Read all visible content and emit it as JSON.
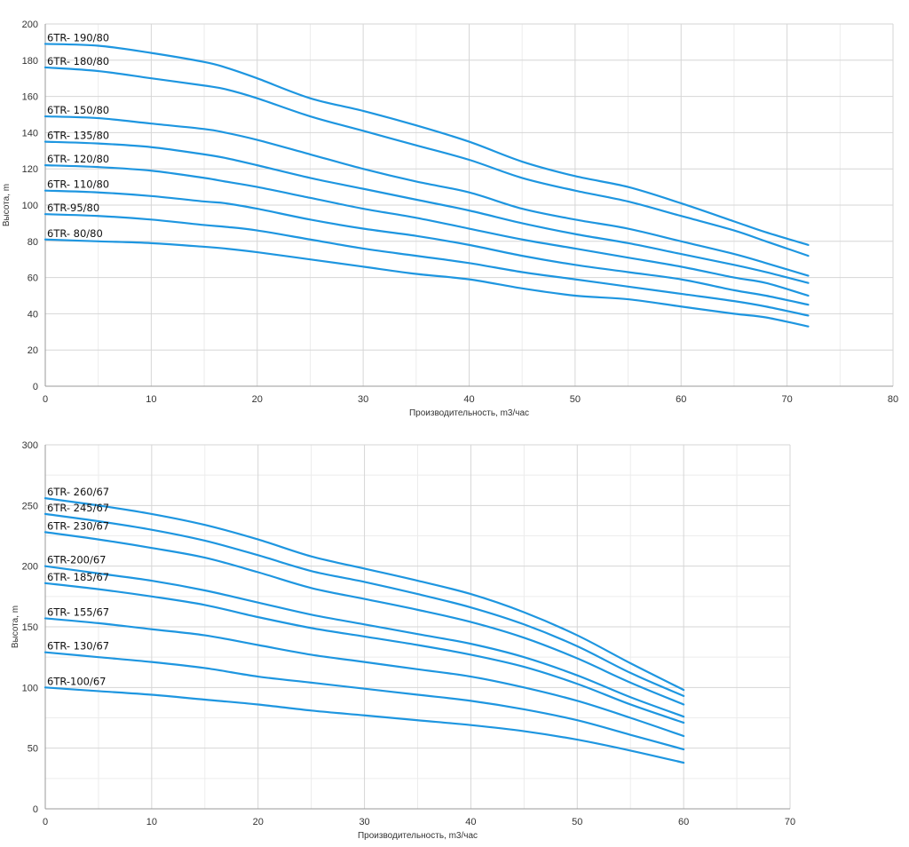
{
  "style": {
    "line_color": "#1e96e0",
    "grid_color": "#d6d6d6",
    "axis_color": "#9a9a9a"
  },
  "chart_data": [
    {
      "type": "line",
      "title": "",
      "xlabel": "Производительность, m3/час",
      "ylabel": "Высота, m",
      "xlim": [
        0,
        80
      ],
      "ylim": [
        0,
        200
      ],
      "x_ticks": [
        0,
        10,
        20,
        30,
        40,
        50,
        60,
        70,
        80
      ],
      "y_ticks": [
        0,
        20,
        40,
        60,
        80,
        100,
        120,
        140,
        160,
        180,
        200
      ],
      "grid": true,
      "series": [
        {
          "name": "6TR- 190/80",
          "points": [
            [
              0,
              189
            ],
            [
              5,
              188
            ],
            [
              10,
              184
            ],
            [
              15,
              179
            ],
            [
              17,
              176
            ],
            [
              20,
              170
            ],
            [
              25,
              159
            ],
            [
              30,
              152
            ],
            [
              35,
              144
            ],
            [
              40,
              135
            ],
            [
              45,
              124
            ],
            [
              50,
              116
            ],
            [
              55,
              110
            ],
            [
              60,
              101
            ],
            [
              65,
              91
            ],
            [
              68,
              85
            ],
            [
              72,
              78
            ]
          ]
        },
        {
          "name": "6TR- 180/80",
          "points": [
            [
              0,
              176
            ],
            [
              5,
              174
            ],
            [
              10,
              170
            ],
            [
              15,
              166
            ],
            [
              17,
              164
            ],
            [
              20,
              159
            ],
            [
              25,
              149
            ],
            [
              30,
              141
            ],
            [
              35,
              133
            ],
            [
              40,
              125
            ],
            [
              45,
              115
            ],
            [
              50,
              108
            ],
            [
              55,
              102
            ],
            [
              60,
              94
            ],
            [
              65,
              86
            ],
            [
              68,
              80
            ],
            [
              72,
              72
            ]
          ]
        },
        {
          "name": "6TR- 150/80",
          "points": [
            [
              0,
              149
            ],
            [
              5,
              148
            ],
            [
              10,
              145
            ],
            [
              15,
              142
            ],
            [
              17,
              140
            ],
            [
              20,
              136
            ],
            [
              25,
              128
            ],
            [
              30,
              120
            ],
            [
              35,
              113
            ],
            [
              40,
              107
            ],
            [
              45,
              98
            ],
            [
              50,
              92
            ],
            [
              55,
              87
            ],
            [
              60,
              80
            ],
            [
              65,
              73
            ],
            [
              68,
              68
            ],
            [
              72,
              61
            ]
          ]
        },
        {
          "name": "6TR- 135/80",
          "points": [
            [
              0,
              135
            ],
            [
              5,
              134
            ],
            [
              10,
              132
            ],
            [
              15,
              128
            ],
            [
              17,
              126
            ],
            [
              20,
              122
            ],
            [
              25,
              115
            ],
            [
              30,
              109
            ],
            [
              35,
              103
            ],
            [
              40,
              97
            ],
            [
              45,
              90
            ],
            [
              50,
              84
            ],
            [
              55,
              79
            ],
            [
              60,
              73
            ],
            [
              65,
              67
            ],
            [
              68,
              63
            ],
            [
              72,
              57
            ]
          ]
        },
        {
          "name": "6TR- 120/80",
          "points": [
            [
              0,
              122
            ],
            [
              5,
              121
            ],
            [
              10,
              119
            ],
            [
              15,
              115
            ],
            [
              17,
              113
            ],
            [
              20,
              110
            ],
            [
              25,
              104
            ],
            [
              30,
              98
            ],
            [
              35,
              93
            ],
            [
              40,
              87
            ],
            [
              45,
              81
            ],
            [
              50,
              76
            ],
            [
              55,
              71
            ],
            [
              60,
              66
            ],
            [
              65,
              60
            ],
            [
              68,
              57
            ],
            [
              72,
              50
            ]
          ]
        },
        {
          "name": "6TR- 110/80",
          "points": [
            [
              0,
              108
            ],
            [
              5,
              107
            ],
            [
              10,
              105
            ],
            [
              15,
              102
            ],
            [
              17,
              101
            ],
            [
              20,
              98
            ],
            [
              25,
              92
            ],
            [
              30,
              87
            ],
            [
              35,
              83
            ],
            [
              40,
              78
            ],
            [
              45,
              72
            ],
            [
              50,
              67
            ],
            [
              55,
              63
            ],
            [
              60,
              59
            ],
            [
              65,
              53
            ],
            [
              68,
              50
            ],
            [
              72,
              45
            ]
          ]
        },
        {
          "name": "6TR-95/80",
          "points": [
            [
              0,
              95
            ],
            [
              5,
              94
            ],
            [
              10,
              92
            ],
            [
              15,
              89
            ],
            [
              17,
              88
            ],
            [
              20,
              86
            ],
            [
              25,
              81
            ],
            [
              30,
              76
            ],
            [
              35,
              72
            ],
            [
              40,
              68
            ],
            [
              45,
              63
            ],
            [
              50,
              59
            ],
            [
              55,
              55
            ],
            [
              60,
              51
            ],
            [
              65,
              47
            ],
            [
              68,
              44
            ],
            [
              72,
              39
            ]
          ]
        },
        {
          "name": "6TR- 80/80",
          "points": [
            [
              0,
              81
            ],
            [
              5,
              80
            ],
            [
              10,
              79
            ],
            [
              15,
              77
            ],
            [
              17,
              76
            ],
            [
              20,
              74
            ],
            [
              25,
              70
            ],
            [
              30,
              66
            ],
            [
              35,
              62
            ],
            [
              40,
              59
            ],
            [
              45,
              54
            ],
            [
              50,
              50
            ],
            [
              55,
              48
            ],
            [
              60,
              44
            ],
            [
              65,
              40
            ],
            [
              68,
              38
            ],
            [
              72,
              33
            ]
          ]
        }
      ]
    },
    {
      "type": "line",
      "title": "",
      "xlabel": "Производительность, m3/час",
      "ylabel": "Высота, m",
      "xlim": [
        0,
        70
      ],
      "ylim": [
        0,
        300
      ],
      "x_ticks": [
        0,
        10,
        20,
        30,
        40,
        50,
        60,
        70
      ],
      "y_ticks": [
        0,
        50,
        100,
        150,
        200,
        250,
        300
      ],
      "grid": true,
      "series": [
        {
          "name": "6TR- 260/67",
          "points": [
            [
              0,
              256
            ],
            [
              5,
              250
            ],
            [
              10,
              243
            ],
            [
              15,
              234
            ],
            [
              20,
              222
            ],
            [
              25,
              208
            ],
            [
              30,
              198
            ],
            [
              35,
              188
            ],
            [
              40,
              177
            ],
            [
              45,
              162
            ],
            [
              50,
              143
            ],
            [
              55,
              120
            ],
            [
              60,
              98
            ]
          ]
        },
        {
          "name": "6TR- 245/67",
          "points": [
            [
              0,
              243
            ],
            [
              5,
              237
            ],
            [
              10,
              230
            ],
            [
              15,
              221
            ],
            [
              20,
              209
            ],
            [
              25,
              196
            ],
            [
              30,
              187
            ],
            [
              35,
              177
            ],
            [
              40,
              166
            ],
            [
              45,
              152
            ],
            [
              50,
              134
            ],
            [
              55,
              112
            ],
            [
              60,
              93
            ]
          ]
        },
        {
          "name": "6TR- 230/67",
          "points": [
            [
              0,
              228
            ],
            [
              5,
              222
            ],
            [
              10,
              215
            ],
            [
              15,
              207
            ],
            [
              20,
              195
            ],
            [
              25,
              182
            ],
            [
              30,
              173
            ],
            [
              35,
              164
            ],
            [
              40,
              154
            ],
            [
              45,
              141
            ],
            [
              50,
              124
            ],
            [
              55,
              104
            ],
            [
              60,
              86
            ]
          ]
        },
        {
          "name": "6TR-200/67",
          "points": [
            [
              0,
              200
            ],
            [
              5,
              194
            ],
            [
              10,
              188
            ],
            [
              15,
              180
            ],
            [
              20,
              170
            ],
            [
              25,
              160
            ],
            [
              30,
              152
            ],
            [
              35,
              144
            ],
            [
              40,
              136
            ],
            [
              45,
              125
            ],
            [
              50,
              110
            ],
            [
              55,
              92
            ],
            [
              60,
              76
            ]
          ]
        },
        {
          "name": "6TR- 185/67",
          "points": [
            [
              0,
              186
            ],
            [
              5,
              181
            ],
            [
              10,
              175
            ],
            [
              15,
              168
            ],
            [
              20,
              158
            ],
            [
              25,
              149
            ],
            [
              30,
              142
            ],
            [
              35,
              135
            ],
            [
              40,
              127
            ],
            [
              45,
              117
            ],
            [
              50,
              103
            ],
            [
              55,
              86
            ],
            [
              60,
              71
            ]
          ]
        },
        {
          "name": "6TR- 155/67",
          "points": [
            [
              0,
              157
            ],
            [
              5,
              153
            ],
            [
              10,
              148
            ],
            [
              15,
              143
            ],
            [
              20,
              135
            ],
            [
              25,
              127
            ],
            [
              30,
              121
            ],
            [
              35,
              115
            ],
            [
              40,
              109
            ],
            [
              45,
              100
            ],
            [
              50,
              89
            ],
            [
              55,
              75
            ],
            [
              60,
              60
            ]
          ]
        },
        {
          "name": "6TR- 130/67",
          "points": [
            [
              0,
              129
            ],
            [
              5,
              125
            ],
            [
              10,
              121
            ],
            [
              15,
              116
            ],
            [
              20,
              109
            ],
            [
              25,
              104
            ],
            [
              30,
              99
            ],
            [
              35,
              94
            ],
            [
              40,
              89
            ],
            [
              45,
              82
            ],
            [
              50,
              73
            ],
            [
              55,
              61
            ],
            [
              60,
              49
            ]
          ]
        },
        {
          "name": "6TR-100/67",
          "points": [
            [
              0,
              100
            ],
            [
              5,
              97
            ],
            [
              10,
              94
            ],
            [
              15,
              90
            ],
            [
              20,
              86
            ],
            [
              25,
              81
            ],
            [
              30,
              77
            ],
            [
              35,
              73
            ],
            [
              40,
              69
            ],
            [
              45,
              64
            ],
            [
              50,
              57
            ],
            [
              55,
              48
            ],
            [
              60,
              38
            ]
          ]
        }
      ]
    }
  ]
}
